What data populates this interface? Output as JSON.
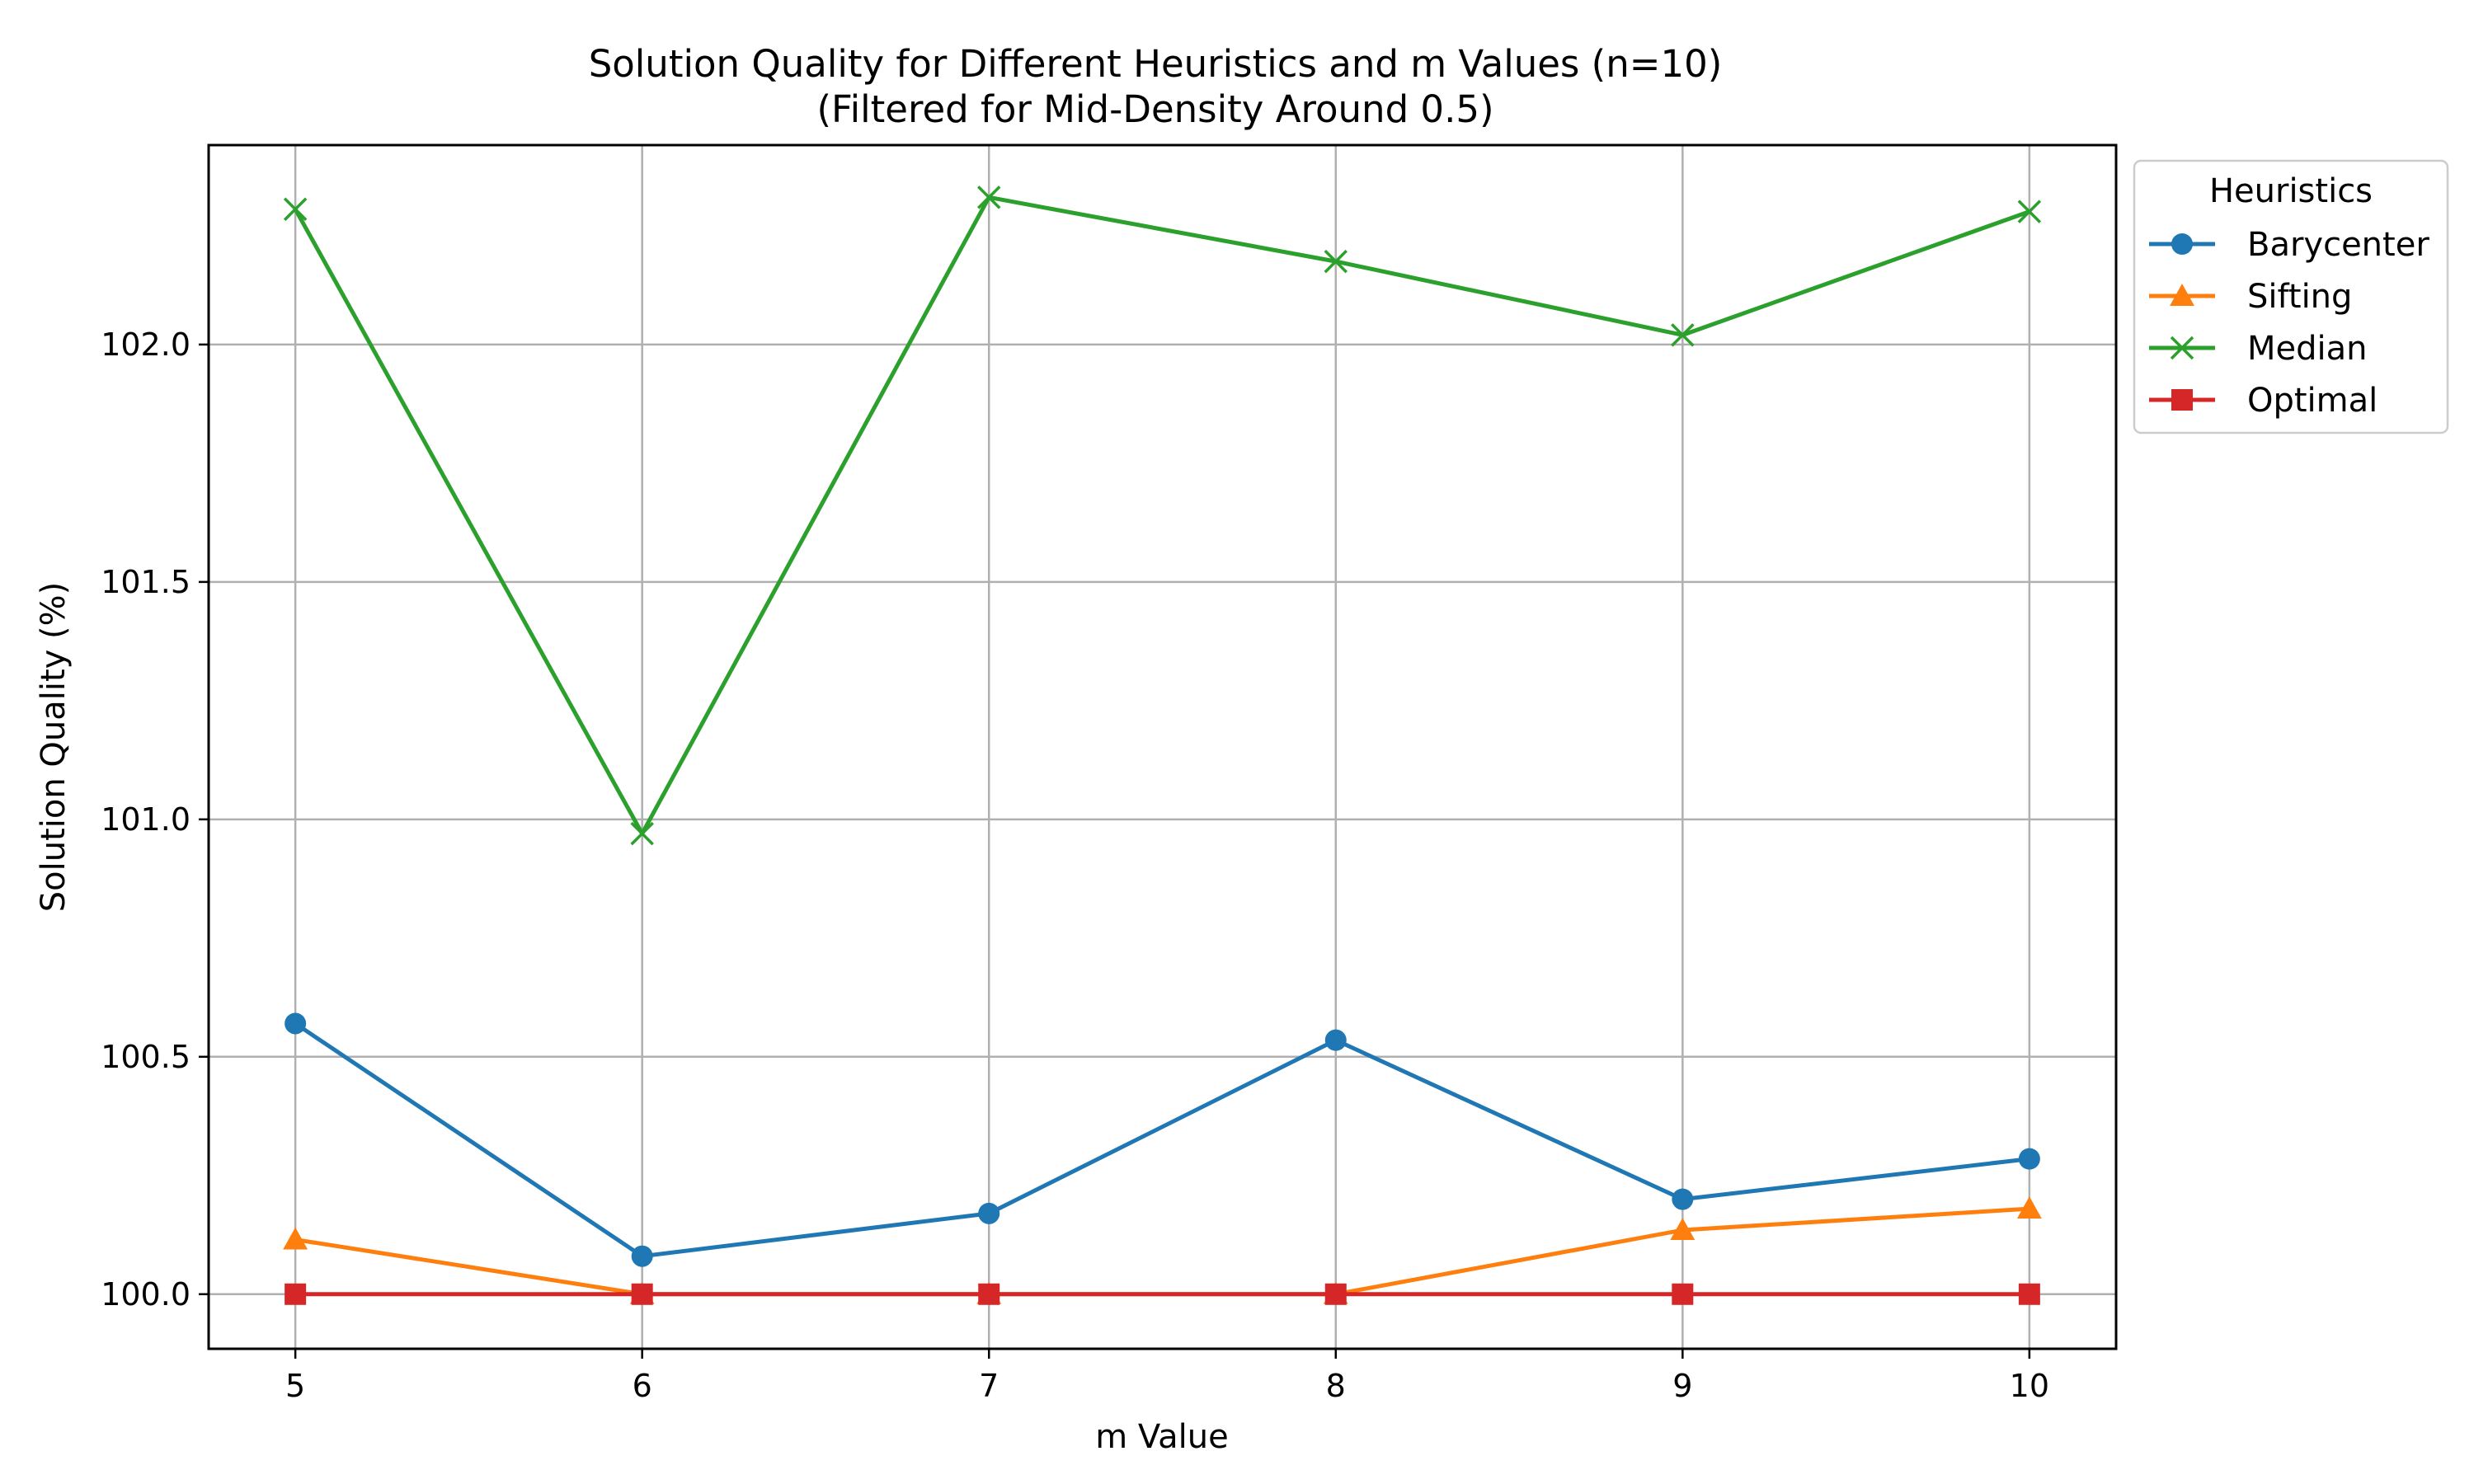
{
  "chart_data": {
    "type": "line",
    "title": "Solution Quality for Different Heuristics and m Values (n=10)",
    "subtitle": "(Filtered for Mid-Density Around 0.5)",
    "xlabel": "m Value",
    "ylabel": "Solution Quality (%)",
    "x": [
      5,
      6,
      7,
      8,
      9,
      10
    ],
    "xlim": [
      4.75,
      10.25
    ],
    "ylim": [
      99.885,
      102.42
    ],
    "xticks": [
      5,
      6,
      7,
      8,
      9,
      10
    ],
    "yticks": [
      100.0,
      100.5,
      101.0,
      101.5,
      102.0
    ],
    "grid": true,
    "legend": {
      "title": "Heuristics",
      "placement": "outside-top-right"
    },
    "series": [
      {
        "name": "Barycenter",
        "color": "#1f77b4",
        "marker": "circle",
        "values": [
          100.57,
          100.08,
          100.17,
          100.535,
          100.2,
          100.285
        ]
      },
      {
        "name": "Sifting",
        "color": "#ff7f0e",
        "marker": "triangle",
        "values": [
          100.115,
          100.0,
          100.0,
          100.0,
          100.135,
          100.18
        ]
      },
      {
        "name": "Median",
        "color": "#2ca02c",
        "marker": "x",
        "values": [
          102.285,
          100.97,
          102.31,
          102.175,
          102.02,
          102.28
        ]
      },
      {
        "name": "Optimal",
        "color": "#d62728",
        "marker": "square",
        "values": [
          100.0,
          100.0,
          100.0,
          100.0,
          100.0,
          100.0
        ]
      }
    ]
  }
}
